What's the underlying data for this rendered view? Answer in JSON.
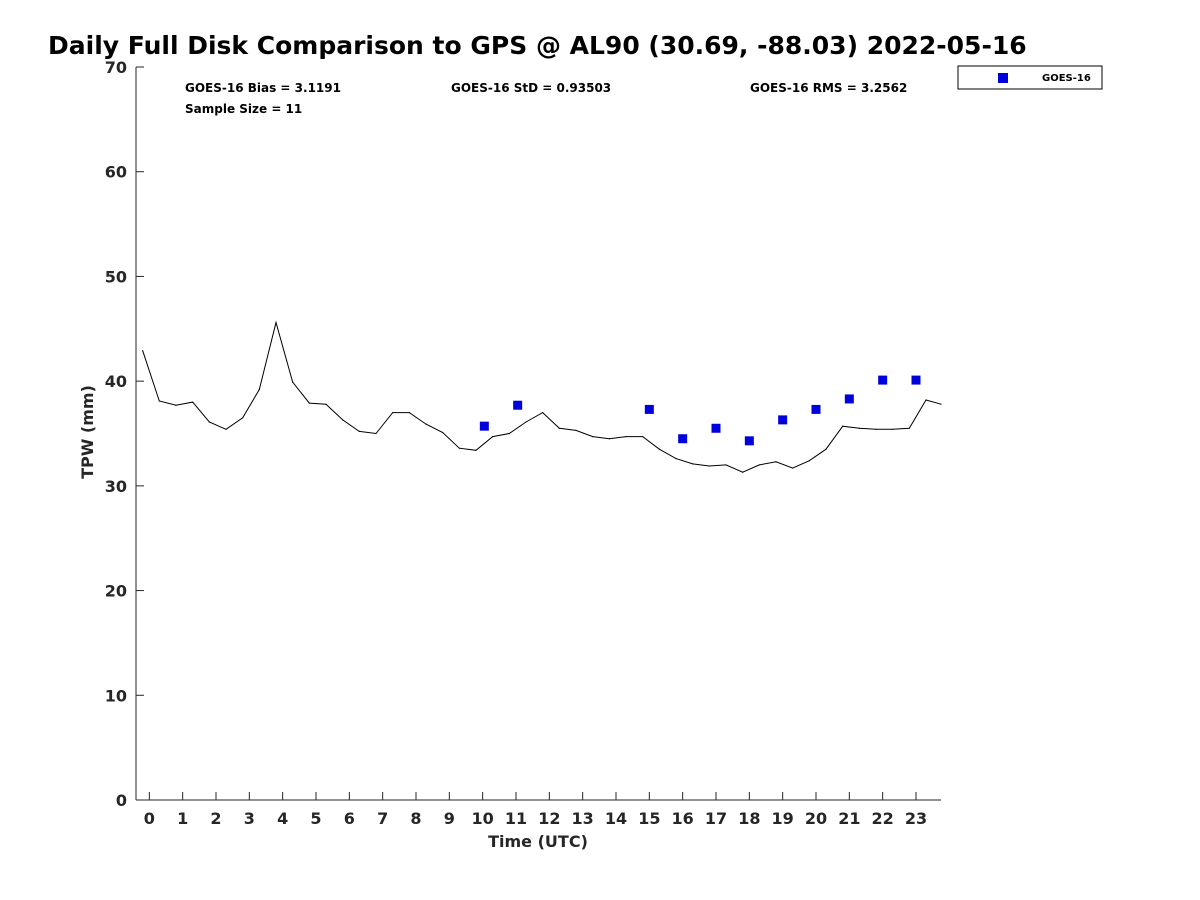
{
  "chart_data": {
    "type": "line",
    "title": "Daily Full Disk Comparison to GPS @ AL90 (30.69, -88.03) 2022-05-16",
    "xlabel": "Time (UTC)",
    "ylabel": "TPW (mm)",
    "xlim": [
      -0.4,
      23.75
    ],
    "ylim": [
      0,
      70
    ],
    "x_ticks": [
      0,
      1,
      2,
      3,
      4,
      5,
      6,
      7,
      8,
      9,
      10,
      11,
      12,
      13,
      14,
      15,
      16,
      17,
      18,
      19,
      20,
      21,
      22,
      23
    ],
    "y_ticks": [
      0,
      10,
      20,
      30,
      40,
      50,
      60,
      70
    ],
    "grid": false,
    "legend_position": "top-right",
    "stats": {
      "bias": "GOES-16 Bias = 3.1191",
      "std": "GOES-16 StD = 0.93503",
      "rms": "GOES-16 RMS = 3.2562",
      "sample": "Sample Size = 11"
    },
    "series": [
      {
        "style": "line",
        "color": "#000000",
        "x": [
          -0.2,
          0.3,
          0.8,
          1.3,
          1.8,
          2.3,
          2.8,
          3.3,
          3.8,
          4.3,
          4.8,
          5.3,
          5.8,
          6.3,
          6.8,
          7.3,
          7.8,
          8.3,
          8.8,
          9.3,
          9.8,
          10.3,
          10.8,
          11.3,
          11.8,
          12.3,
          12.8,
          13.3,
          13.8,
          14.3,
          14.8,
          15.3,
          15.8,
          16.3,
          16.8,
          17.3,
          17.8,
          18.3,
          18.8,
          19.3,
          19.8,
          20.3,
          20.8,
          21.3,
          21.8,
          22.3,
          22.8,
          23.3,
          23.75
        ],
        "y": [
          42.9,
          38.1,
          37.7,
          38.0,
          36.1,
          35.4,
          36.5,
          39.2,
          45.6,
          39.9,
          37.9,
          37.8,
          36.3,
          35.2,
          35.0,
          37.0,
          37.0,
          35.9,
          35.1,
          33.6,
          33.4,
          34.7,
          35.0,
          36.1,
          37.0,
          35.5,
          35.3,
          34.7,
          34.5,
          34.7,
          34.7,
          33.5,
          32.6,
          32.1,
          31.9,
          32.0,
          31.3,
          32.0,
          32.3,
          31.7,
          32.4,
          33.5,
          35.7,
          35.5,
          35.4,
          35.4,
          35.5,
          38.2,
          37.8
        ]
      },
      {
        "name": "GOES-16",
        "style": "markers",
        "marker": "square",
        "color": "#0000dd",
        "x": [
          10.05,
          11.05,
          15.0,
          16.0,
          17.0,
          18.0,
          19.0,
          20.0,
          21.0,
          22.0,
          23.0
        ],
        "y": [
          35.7,
          37.7,
          37.3,
          34.5,
          35.5,
          34.3,
          36.3,
          37.3,
          38.3,
          40.1,
          40.1
        ]
      }
    ]
  }
}
